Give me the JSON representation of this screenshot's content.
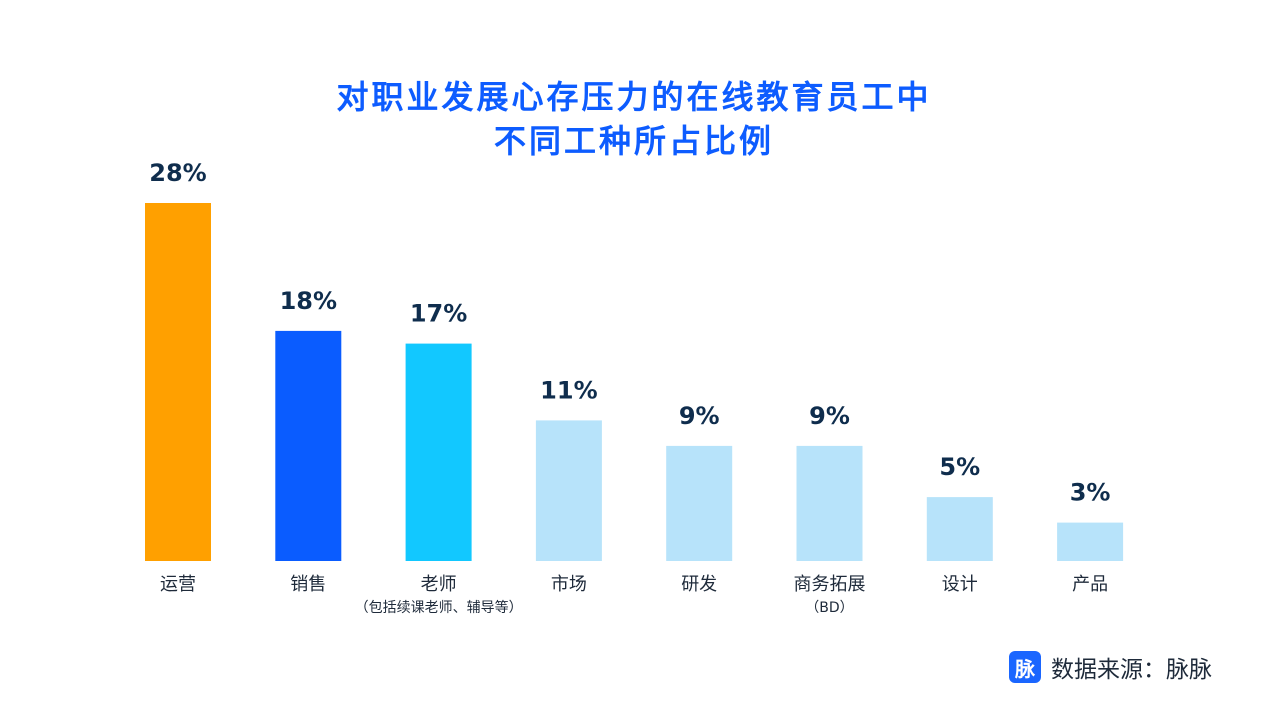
{
  "chart_data": {
    "type": "bar",
    "title_lines": [
      "对职业发展心存压力的在线教育员工中",
      "不同工种所占比例"
    ],
    "categories": [
      {
        "label": "运营",
        "sub": ""
      },
      {
        "label": "销售",
        "sub": ""
      },
      {
        "label": "老师",
        "sub": "（包括续课老师、辅导等）"
      },
      {
        "label": "市场",
        "sub": ""
      },
      {
        "label": "研发",
        "sub": ""
      },
      {
        "label": "商务拓展",
        "sub": "（BD）"
      },
      {
        "label": "设计",
        "sub": ""
      },
      {
        "label": "产品",
        "sub": ""
      }
    ],
    "values": [
      28,
      18,
      17,
      11,
      9,
      9,
      5,
      3
    ],
    "value_labels": [
      "28%",
      "18%",
      "17%",
      "11%",
      "9%",
      "9%",
      "5%",
      "3%"
    ],
    "colors": [
      "#ffa000",
      "#0a5cff",
      "#12c8ff",
      "#b7e3fa",
      "#b7e3fa",
      "#b7e3fa",
      "#b7e3fa",
      "#b7e3fa"
    ],
    "ylim": [
      0,
      28
    ],
    "grid": false,
    "legend": "none"
  },
  "source": {
    "logo_glyph": "脉",
    "text": "数据来源：脉脉"
  }
}
